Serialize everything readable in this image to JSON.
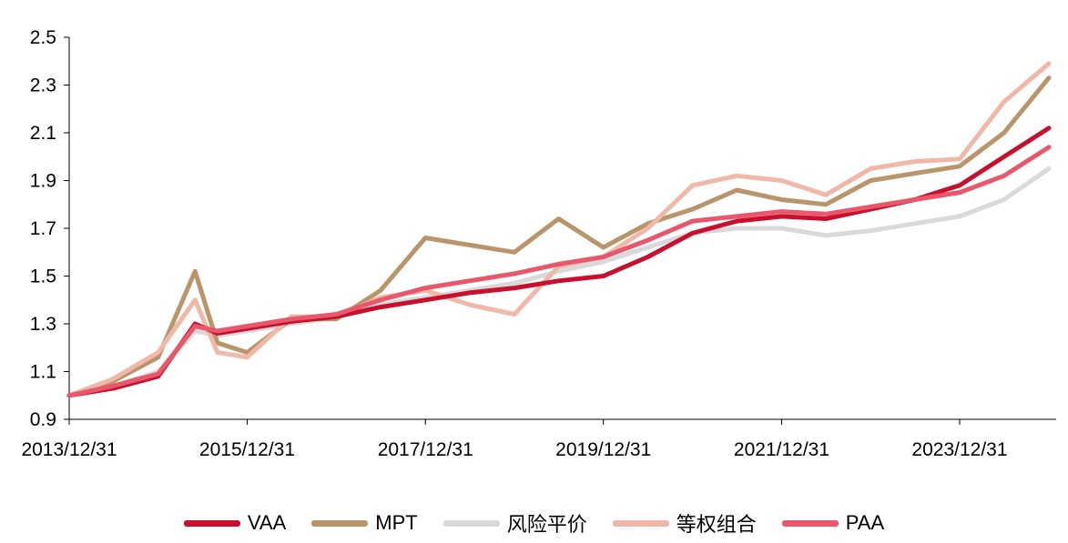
{
  "chart_data": {
    "type": "line",
    "title": "",
    "xlabel": "",
    "ylabel": "",
    "ylim": [
      0.9,
      2.5
    ],
    "yticks": [
      "2.5",
      "2.3",
      "2.1",
      "1.9",
      "1.7",
      "1.5",
      "1.3",
      "1.1",
      "0.9"
    ],
    "xticks": [
      "2013/12/31",
      "2015/12/31",
      "2017/12/31",
      "2019/12/31",
      "2021/12/31",
      "2023/12/31"
    ],
    "grid": false,
    "legend_position": "bottom",
    "x": [
      "2013/12/31",
      "2014/06/30",
      "2014/12/31",
      "2015/05/31",
      "2015/08/31",
      "2015/12/31",
      "2016/06/30",
      "2016/12/31",
      "2017/06/30",
      "2017/12/31",
      "2018/06/30",
      "2018/12/31",
      "2019/06/30",
      "2019/12/31",
      "2020/06/30",
      "2020/12/31",
      "2021/06/30",
      "2021/12/31",
      "2022/06/30",
      "2022/12/31",
      "2023/06/30",
      "2023/12/31",
      "2024/06/30",
      "2024/12/31"
    ],
    "series": [
      {
        "name": "VAA",
        "color": "#c8102e",
        "values": [
          1.0,
          1.03,
          1.08,
          1.3,
          1.26,
          1.28,
          1.31,
          1.33,
          1.37,
          1.4,
          1.43,
          1.45,
          1.48,
          1.5,
          1.58,
          1.68,
          1.73,
          1.75,
          1.74,
          1.78,
          1.82,
          1.88,
          2.0,
          2.12
        ]
      },
      {
        "name": "MPT",
        "color": "#b8956a",
        "values": [
          1.0,
          1.06,
          1.16,
          1.52,
          1.22,
          1.18,
          1.32,
          1.32,
          1.44,
          1.66,
          1.63,
          1.6,
          1.74,
          1.62,
          1.72,
          1.78,
          1.86,
          1.82,
          1.8,
          1.9,
          1.93,
          1.96,
          2.1,
          2.33
        ]
      },
      {
        "name": "风险平价",
        "color": "#d9d9d9",
        "values": [
          1.0,
          1.04,
          1.1,
          1.27,
          1.25,
          1.27,
          1.3,
          1.33,
          1.38,
          1.41,
          1.44,
          1.47,
          1.52,
          1.56,
          1.62,
          1.68,
          1.7,
          1.7,
          1.67,
          1.69,
          1.72,
          1.75,
          1.82,
          1.95
        ]
      },
      {
        "name": "等权组合",
        "color": "#f0b8a8",
        "values": [
          1.0,
          1.07,
          1.18,
          1.4,
          1.18,
          1.16,
          1.33,
          1.33,
          1.41,
          1.44,
          1.38,
          1.34,
          1.54,
          1.58,
          1.7,
          1.88,
          1.92,
          1.9,
          1.84,
          1.95,
          1.98,
          1.99,
          2.23,
          2.39
        ]
      },
      {
        "name": "PAA",
        "color": "#e8576b",
        "values": [
          1.0,
          1.04,
          1.09,
          1.29,
          1.27,
          1.29,
          1.32,
          1.34,
          1.4,
          1.45,
          1.48,
          1.51,
          1.55,
          1.58,
          1.65,
          1.73,
          1.75,
          1.77,
          1.76,
          1.79,
          1.82,
          1.85,
          1.92,
          2.04
        ]
      }
    ]
  }
}
